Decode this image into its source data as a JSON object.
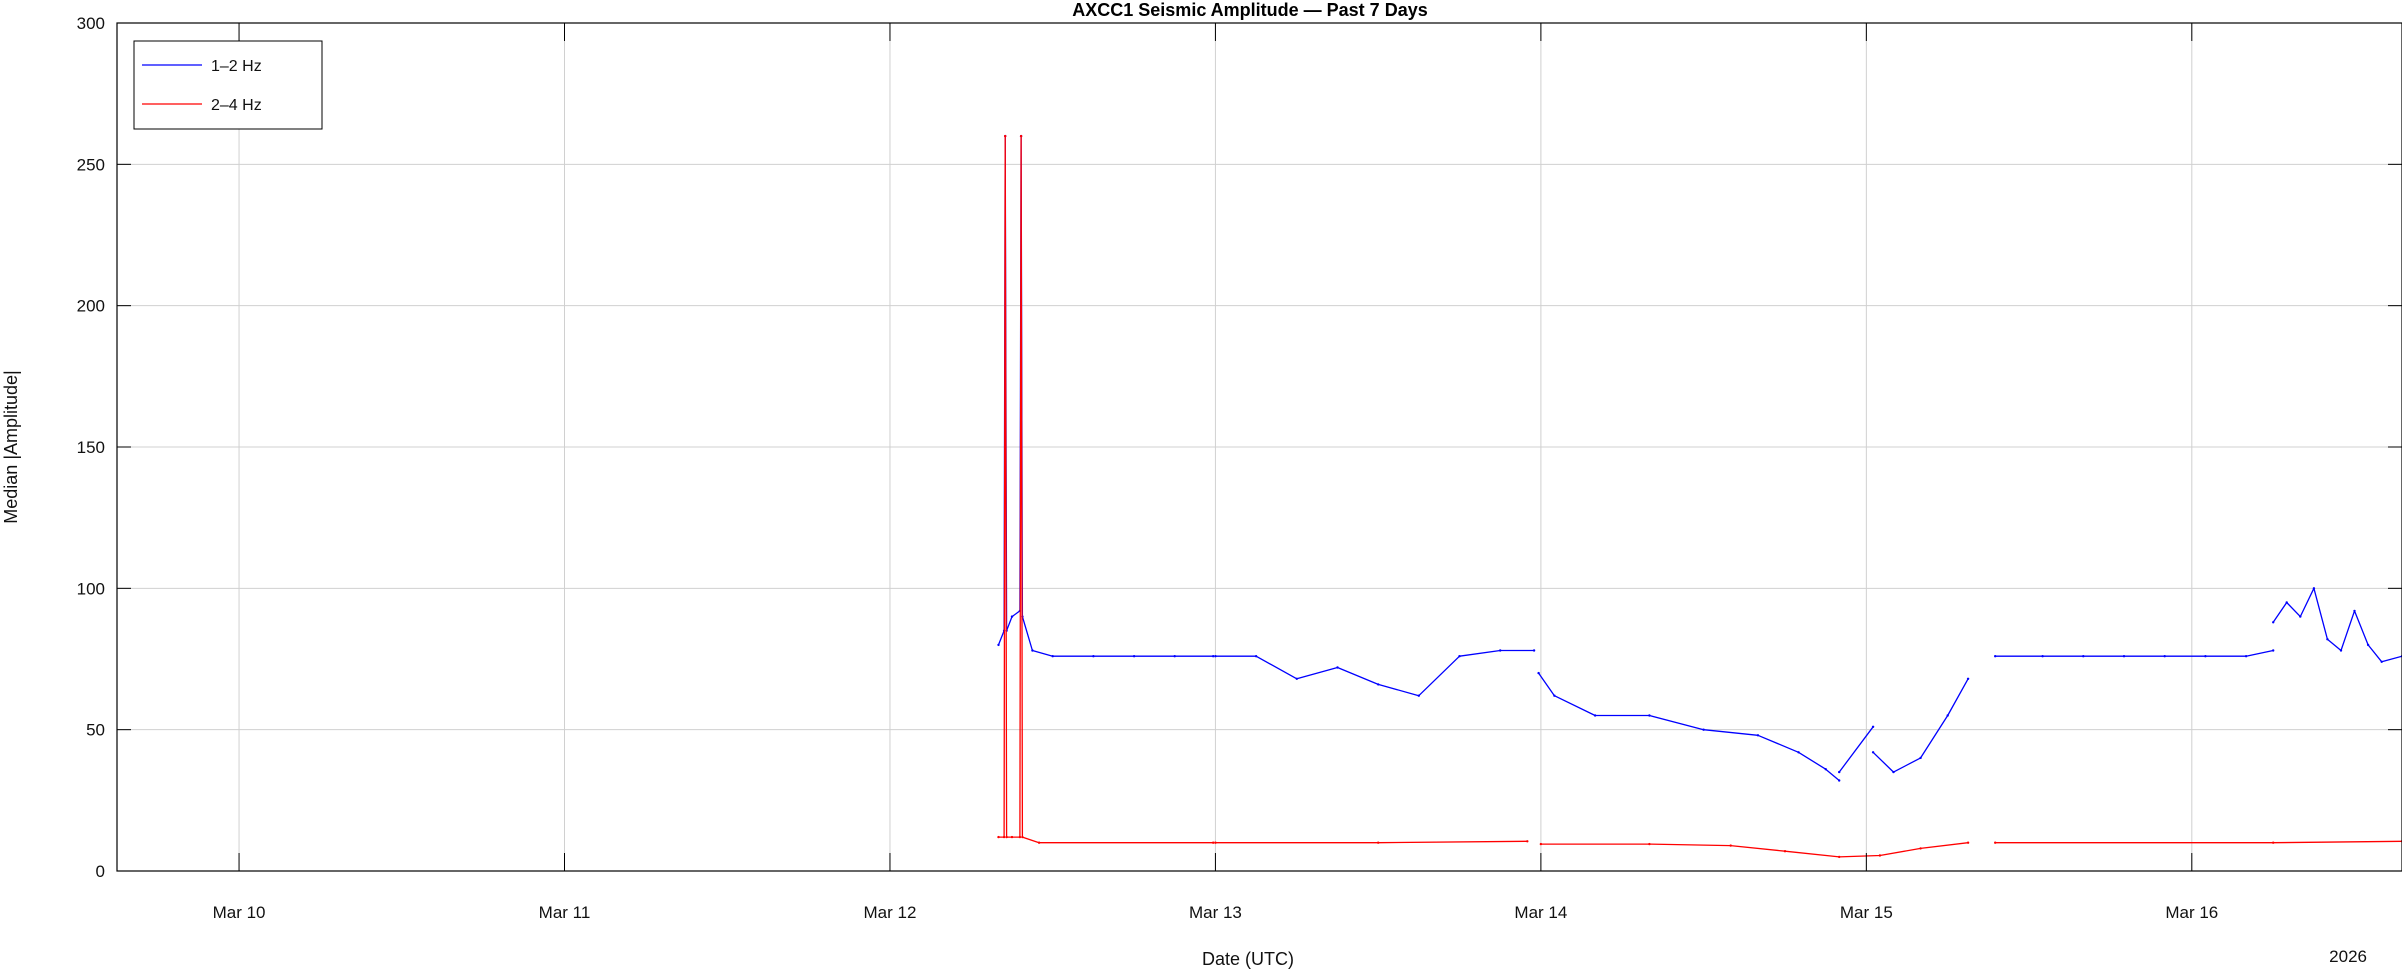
{
  "chart_data": {
    "type": "line",
    "title": "AXCC1 Seismic Amplitude — Past 7 Days",
    "xlabel": "Date (UTC)",
    "ylabel": "Median |Amplitude|",
    "year_label": "2026",
    "x_unit": "date (UTC, March 2026)",
    "xlim": [
      "2026-03-09T15:00",
      "2026-03-16T15:30"
    ],
    "ylim": [
      0,
      300
    ],
    "x_ticks": [
      "Mar 10",
      "Mar 11",
      "Mar 12",
      "Mar 13",
      "Mar 14",
      "Mar 15",
      "Mar 16"
    ],
    "x_tick_dates": [
      "2026-03-10",
      "2026-03-11",
      "2026-03-12",
      "2026-03-13",
      "2026-03-14",
      "2026-03-15",
      "2026-03-16"
    ],
    "y_ticks": [
      0,
      50,
      100,
      150,
      200,
      250,
      300
    ],
    "grid": true,
    "legend_position": "top-left",
    "series": [
      {
        "name": "1–2 Hz",
        "color": "#0000ff",
        "segments": [
          {
            "x": [
              "2026-03-12T08:00",
              "2026-03-12T08:25",
              "2026-03-12T08:30",
              "2026-03-12T08:36",
              "2026-03-12T09:00",
              "2026-03-12T09:35",
              "2026-03-12T09:40",
              "2026-03-12T09:46",
              "2026-03-12T10:30",
              "2026-03-12T12:00",
              "2026-03-12T15:00",
              "2026-03-12T18:00",
              "2026-03-12T21:00",
              "2026-03-12T23:50"
            ],
            "y": [
              80,
              85,
              260,
              85,
              90,
              92,
              260,
              90,
              78,
              76,
              76,
              76,
              76,
              76
            ]
          },
          {
            "x": [
              "2026-03-13T00:00",
              "2026-03-13T03:00",
              "2026-03-13T06:00",
              "2026-03-13T09:00",
              "2026-03-13T12:00",
              "2026-03-13T15:00",
              "2026-03-13T18:00",
              "2026-03-13T21:00",
              "2026-03-13T23:30"
            ],
            "y": [
              76,
              76,
              68,
              72,
              66,
              62,
              76,
              78,
              78
            ]
          },
          {
            "x": [
              "2026-03-13T23:50",
              "2026-03-14T01:00",
              "2026-03-14T04:00",
              "2026-03-14T08:00",
              "2026-03-14T12:00",
              "2026-03-14T16:00",
              "2026-03-14T19:00",
              "2026-03-14T21:00",
              "2026-03-14T22:00"
            ],
            "y": [
              70,
              62,
              55,
              55,
              50,
              48,
              42,
              36,
              32
            ]
          },
          {
            "x": [
              "2026-03-14T22:00",
              "2026-03-15T00:30"
            ],
            "y": [
              35,
              51
            ]
          },
          {
            "x": [
              "2026-03-15T00:30",
              "2026-03-15T02:00",
              "2026-03-15T04:00",
              "2026-03-15T06:00",
              "2026-03-15T07:30"
            ],
            "y": [
              42,
              35,
              40,
              55,
              68
            ]
          },
          {
            "x": [
              "2026-03-15T09:30",
              "2026-03-15T13:00",
              "2026-03-15T16:00",
              "2026-03-15T19:00",
              "2026-03-15T22:00",
              "2026-03-16T01:00",
              "2026-03-16T04:00",
              "2026-03-16T06:00"
            ],
            "y": [
              76,
              76,
              76,
              76,
              76,
              76,
              76,
              78
            ]
          },
          {
            "x": [
              "2026-03-16T06:00",
              "2026-03-16T07:00",
              "2026-03-16T08:00",
              "2026-03-16T09:00",
              "2026-03-16T10:00",
              "2026-03-16T11:00",
              "2026-03-16T12:00",
              "2026-03-16T13:00",
              "2026-03-16T14:00",
              "2026-03-16T15:30"
            ],
            "y": [
              88,
              95,
              90,
              100,
              82,
              78,
              92,
              80,
              74,
              76
            ]
          }
        ]
      },
      {
        "name": "2–4 Hz",
        "color": "#ff0000",
        "segments": [
          {
            "x": [
              "2026-03-12T08:00",
              "2026-03-12T08:25",
              "2026-03-12T08:30",
              "2026-03-12T08:36",
              "2026-03-12T09:00",
              "2026-03-12T09:35",
              "2026-03-12T09:40",
              "2026-03-12T09:46",
              "2026-03-12T11:00",
              "2026-03-12T23:50"
            ],
            "y": [
              12,
              12,
              260,
              12,
              12,
              12,
              260,
              12,
              10,
              10
            ]
          },
          {
            "x": [
              "2026-03-13T00:00",
              "2026-03-13T12:00",
              "2026-03-13T23:00"
            ],
            "y": [
              10,
              10,
              10.5
            ]
          },
          {
            "x": [
              "2026-03-14T00:00",
              "2026-03-14T08:00",
              "2026-03-14T14:00",
              "2026-03-14T18:00",
              "2026-03-14T22:00",
              "2026-03-15T01:00",
              "2026-03-15T04:00",
              "2026-03-15T07:30"
            ],
            "y": [
              9.5,
              9.5,
              9,
              7,
              5,
              5.5,
              8,
              10
            ]
          },
          {
            "x": [
              "2026-03-15T09:30",
              "2026-03-16T06:00",
              "2026-03-16T15:30"
            ],
            "y": [
              10,
              10,
              10.5
            ]
          }
        ]
      }
    ]
  }
}
